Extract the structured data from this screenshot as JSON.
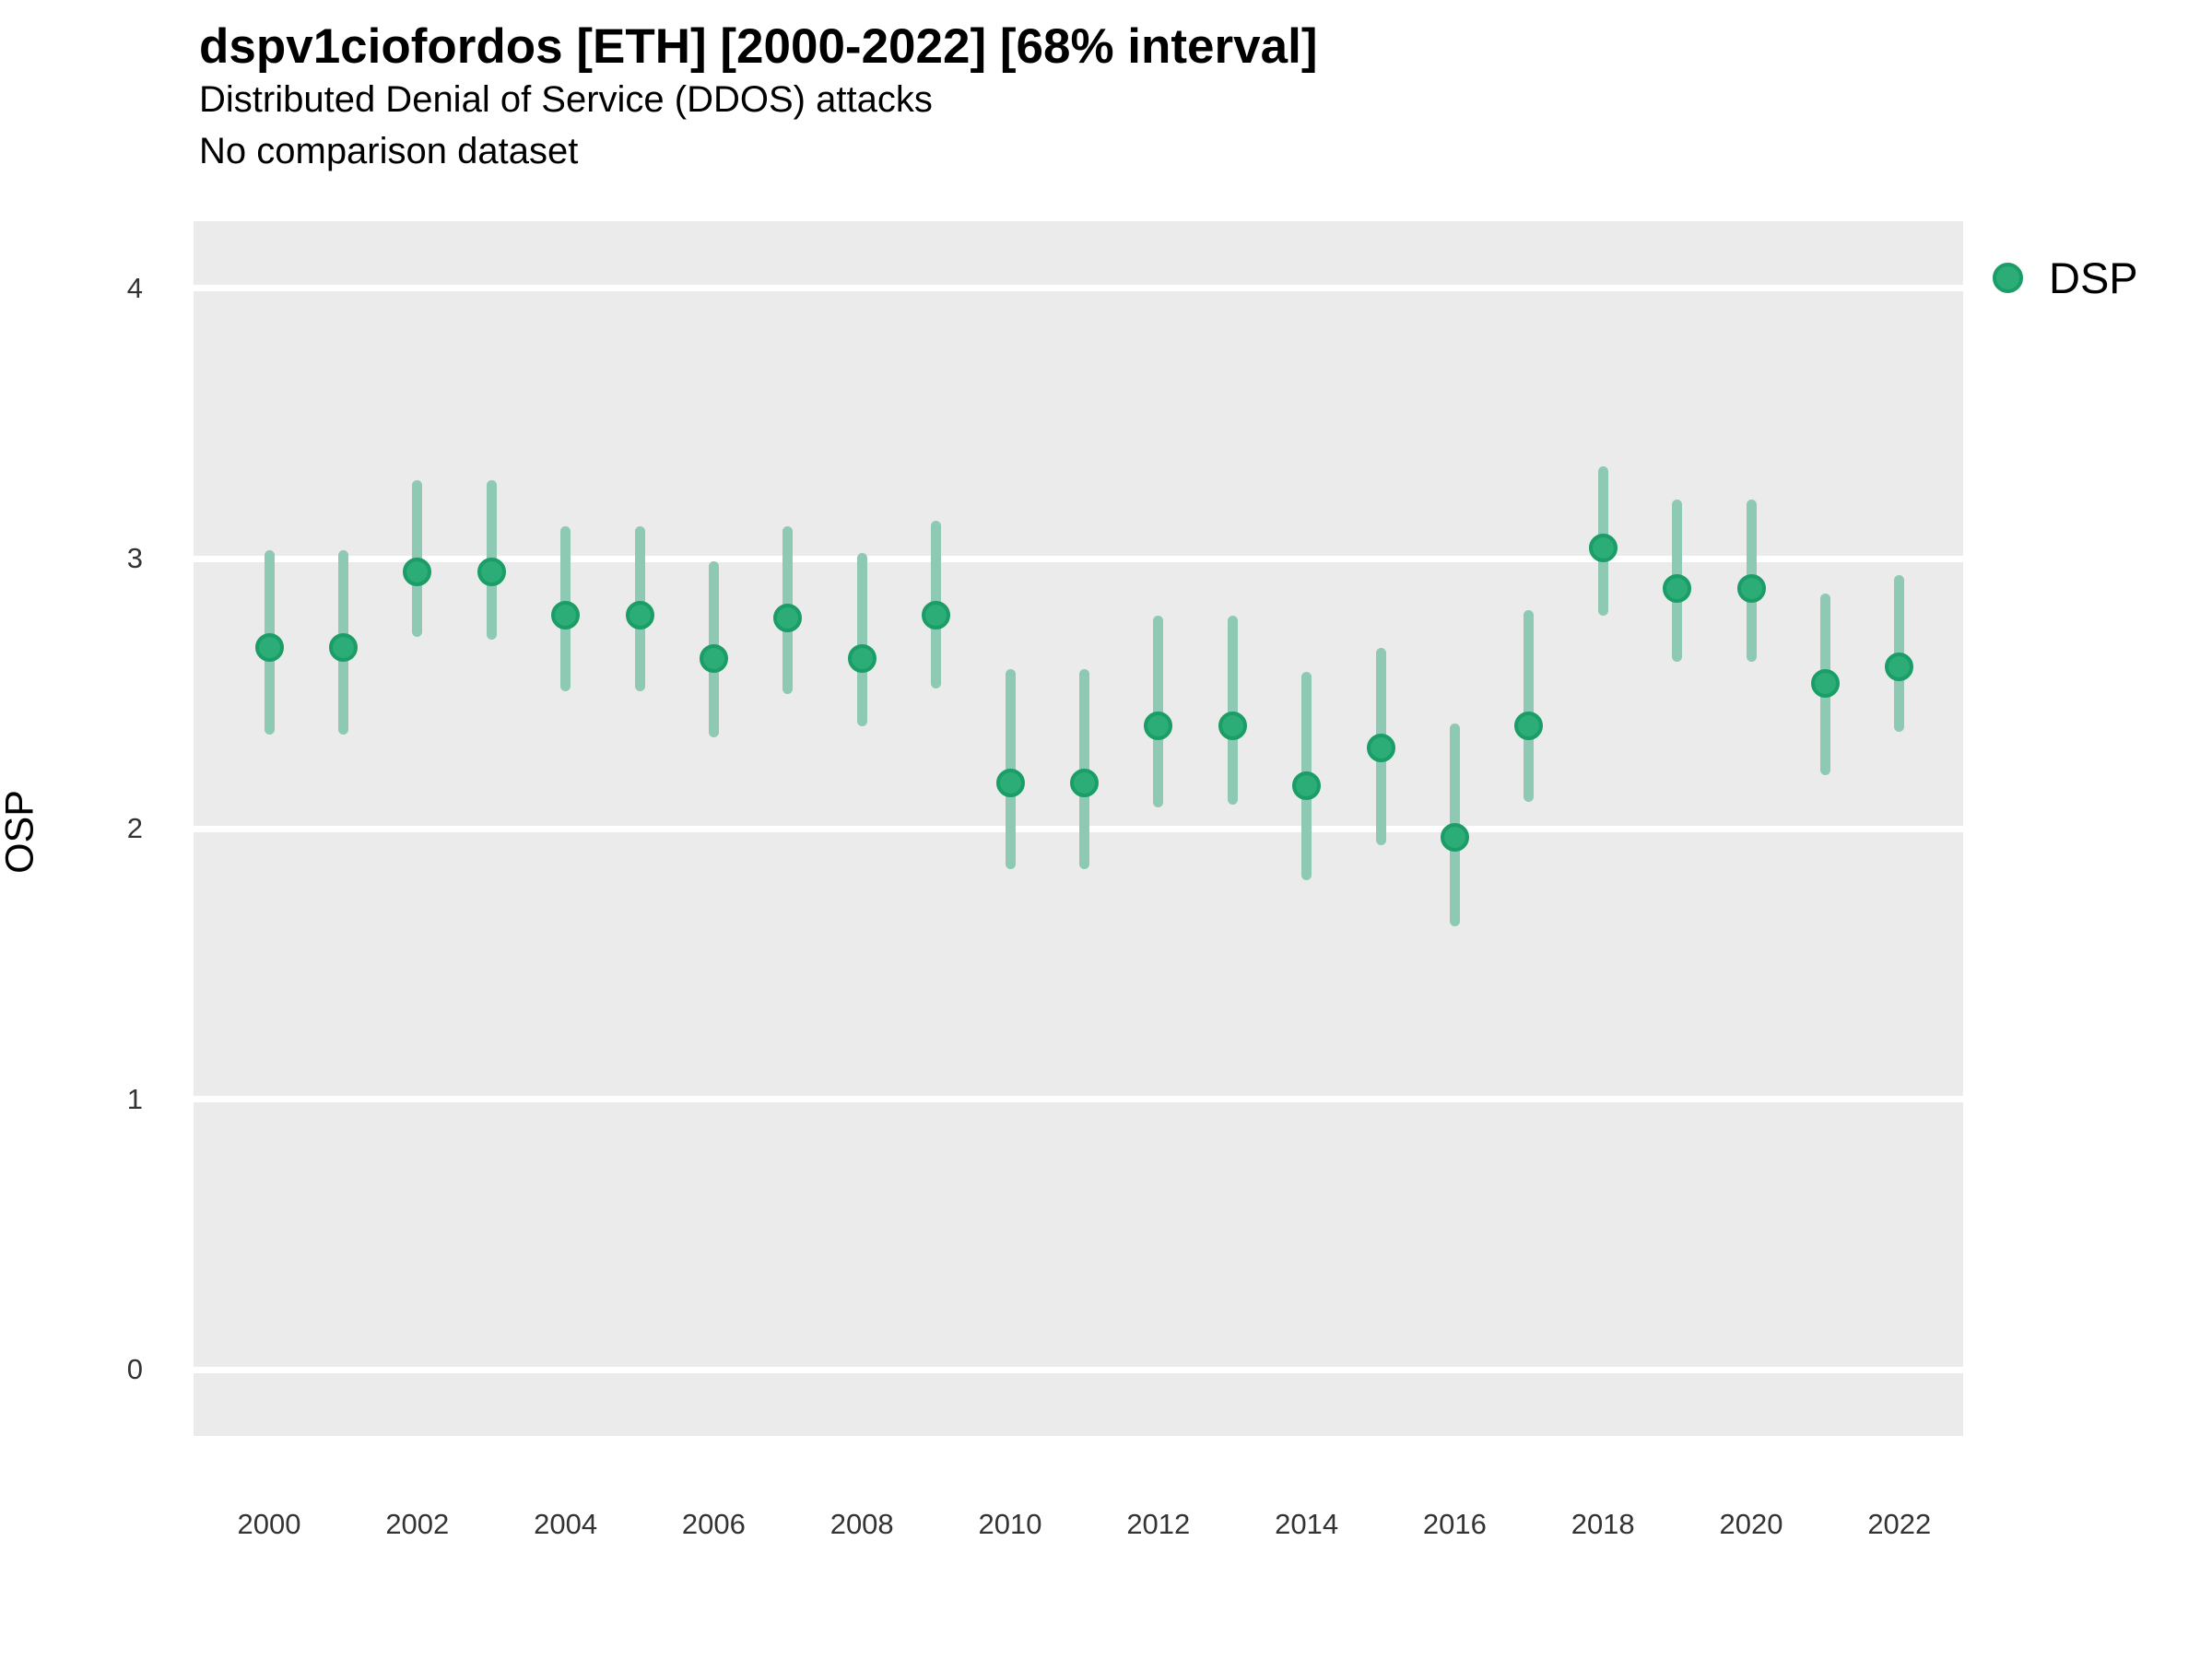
{
  "figure": {
    "title": "dspv1ciofordos [ETH] [2000-2022] [68% interval]",
    "subtitle": "Distributed Denial of Service (DDOS) attacks",
    "note": "No comparison dataset"
  },
  "legend": {
    "label": "DSP"
  },
  "colors": {
    "point_fill": "#2cac76",
    "point_stroke": "#1a9d67",
    "interval_bar": "#8dc9b3",
    "panel_background": "#ebebeb",
    "gridline": "#ffffff",
    "tick_text": "#333333",
    "text": "#000000"
  },
  "chart_data": {
    "type": "pointrange",
    "title": "dspv1ciofordos [ETH] [2000-2022] [68% interval]",
    "subtitle": "Distributed Denial of Service (DDOS) attacks",
    "annotation": "No comparison dataset",
    "xlabel": "",
    "ylabel": "OSP",
    "interval": "68%",
    "grid": "major-y-only",
    "legend_position": "right-top",
    "ylim": [
      0,
      4
    ],
    "yticks": [
      0,
      1,
      2,
      3,
      4
    ],
    "xticks": [
      2000,
      2002,
      2004,
      2006,
      2008,
      2010,
      2012,
      2014,
      2016,
      2018,
      2020,
      2022
    ],
    "series": [
      {
        "name": "DSP",
        "points": [
          {
            "year": 2000,
            "value": 2.67,
            "lo": 2.35,
            "hi": 3.03
          },
          {
            "year": 2001,
            "value": 2.67,
            "lo": 2.35,
            "hi": 3.03
          },
          {
            "year": 2002,
            "value": 2.95,
            "lo": 2.71,
            "hi": 3.29
          },
          {
            "year": 2003,
            "value": 2.95,
            "lo": 2.7,
            "hi": 3.29
          },
          {
            "year": 2004,
            "value": 2.79,
            "lo": 2.51,
            "hi": 3.12
          },
          {
            "year": 2005,
            "value": 2.79,
            "lo": 2.51,
            "hi": 3.12
          },
          {
            "year": 2006,
            "value": 2.63,
            "lo": 2.34,
            "hi": 2.99
          },
          {
            "year": 2007,
            "value": 2.78,
            "lo": 2.5,
            "hi": 3.12
          },
          {
            "year": 2008,
            "value": 2.63,
            "lo": 2.38,
            "hi": 3.02
          },
          {
            "year": 2009,
            "value": 2.79,
            "lo": 2.52,
            "hi": 3.14
          },
          {
            "year": 2010,
            "value": 2.17,
            "lo": 1.85,
            "hi": 2.59
          },
          {
            "year": 2011,
            "value": 2.17,
            "lo": 1.85,
            "hi": 2.59
          },
          {
            "year": 2012,
            "value": 2.38,
            "lo": 2.08,
            "hi": 2.79
          },
          {
            "year": 2013,
            "value": 2.38,
            "lo": 2.09,
            "hi": 2.79
          },
          {
            "year": 2014,
            "value": 2.16,
            "lo": 1.81,
            "hi": 2.58
          },
          {
            "year": 2015,
            "value": 2.3,
            "lo": 1.94,
            "hi": 2.67
          },
          {
            "year": 2016,
            "value": 1.97,
            "lo": 1.64,
            "hi": 2.39
          },
          {
            "year": 2017,
            "value": 2.38,
            "lo": 2.1,
            "hi": 2.81
          },
          {
            "year": 2018,
            "value": 3.04,
            "lo": 2.79,
            "hi": 3.34
          },
          {
            "year": 2019,
            "value": 2.89,
            "lo": 2.62,
            "hi": 3.22
          },
          {
            "year": 2020,
            "value": 2.89,
            "lo": 2.62,
            "hi": 3.22
          },
          {
            "year": 2021,
            "value": 2.54,
            "lo": 2.2,
            "hi": 2.87
          },
          {
            "year": 2022,
            "value": 2.6,
            "lo": 2.36,
            "hi": 2.94
          }
        ]
      }
    ]
  }
}
